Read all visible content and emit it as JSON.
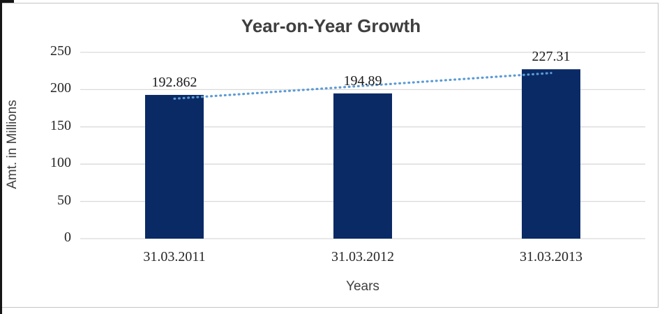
{
  "chart_data": {
    "type": "bar",
    "title": "Year-on-Year Growth",
    "xlabel": "Years",
    "ylabel": "Amt. in Millions",
    "categories": [
      "31.03.2011",
      "31.03.2012",
      "31.03.2013"
    ],
    "values": [
      192.862,
      194.89,
      227.31
    ],
    "data_labels": [
      "192.862",
      "194.89",
      "227.31"
    ],
    "ylim": [
      0,
      250
    ],
    "yticks": [
      0,
      50,
      100,
      150,
      200,
      250
    ],
    "grid": true,
    "legend_position": "none",
    "trendline": {
      "type": "linear",
      "style": "dotted"
    },
    "colors": {
      "bar": "#0A2A66",
      "trendline": "#5B9BD5",
      "gridline": "#D9D9D9",
      "border": "#C3C3C3",
      "label_text": "#262626",
      "title_text": "#3F3F3F",
      "axis_title_text": "#404040"
    }
  }
}
